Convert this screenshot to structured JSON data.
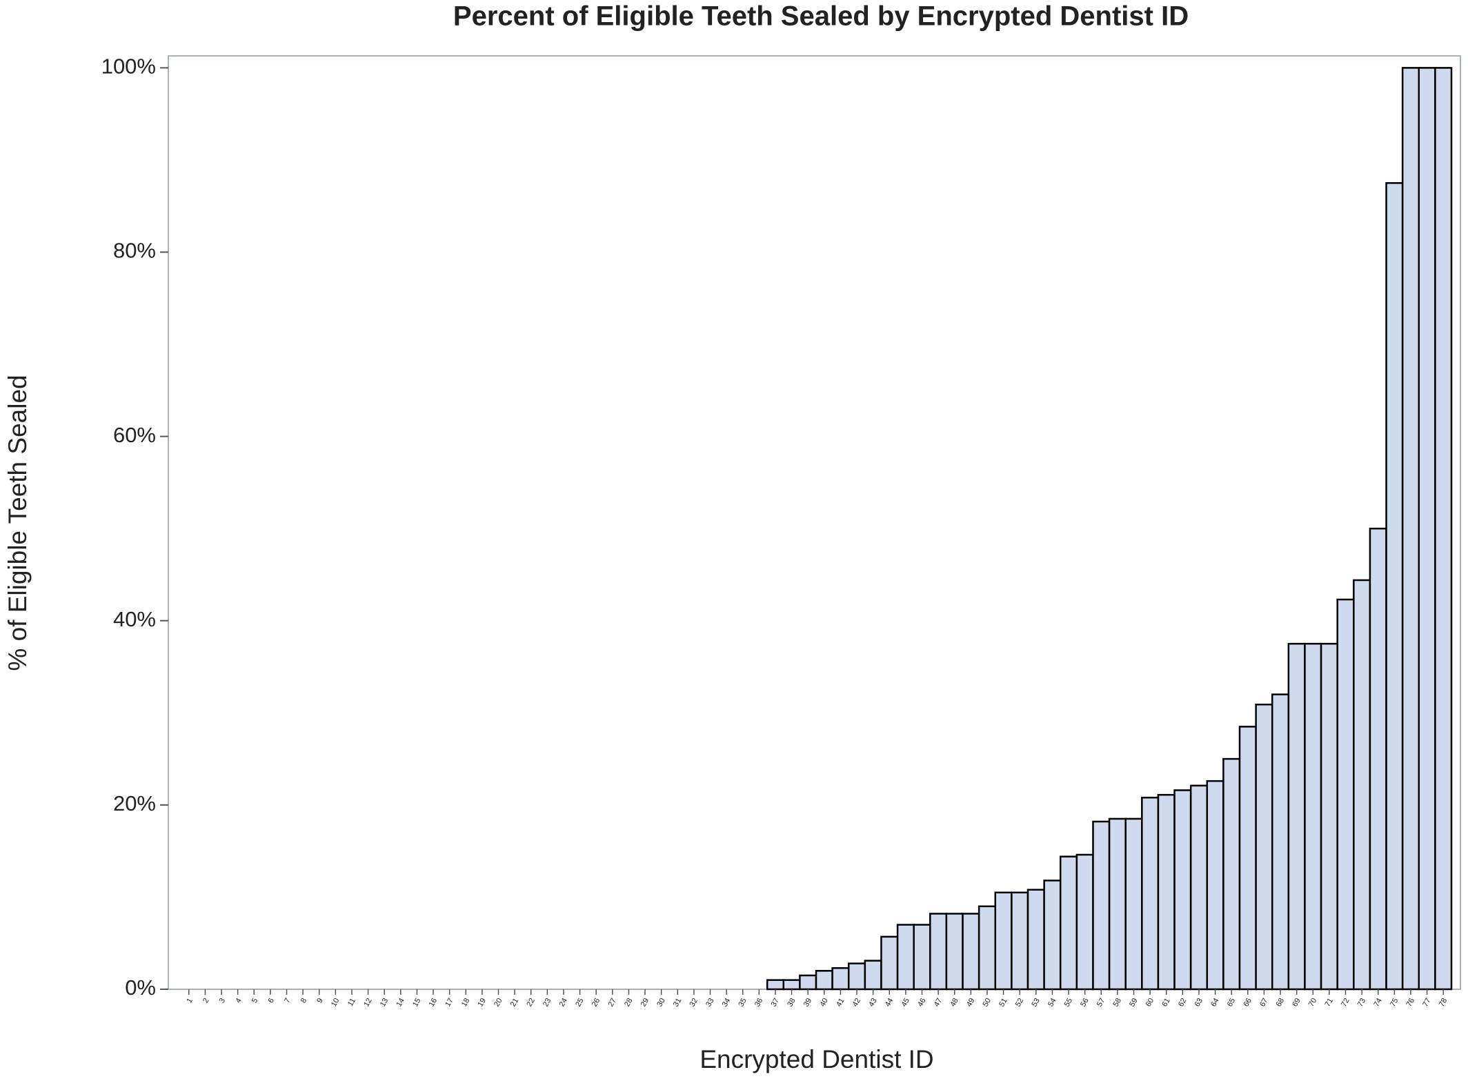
{
  "chart_data": {
    "type": "bar",
    "title": "Percent of Eligible Teeth Sealed by Encrypted Dentist ID",
    "x_label": "Encrypted Dentist ID",
    "y_label": "% of Eligible Teeth Sealed",
    "categories": [
      "1",
      "2",
      "3",
      "4",
      "5",
      "6",
      "7",
      "8",
      "9",
      "10",
      "11",
      "12",
      "13",
      "14",
      "15",
      "16",
      "17",
      "18",
      "19",
      "20",
      "21",
      "22",
      "23",
      "24",
      "25",
      "26",
      "27",
      "28",
      "29",
      "30",
      "31",
      "32",
      "33",
      "34",
      "35",
      "36",
      "37",
      "38",
      "39",
      "40",
      "41",
      "42",
      "43",
      "44",
      "45",
      "46",
      "47",
      "48",
      "49",
      "50",
      "51",
      "52",
      "53",
      "54",
      "55",
      "56",
      "57",
      "58",
      "59",
      "60",
      "61",
      "62",
      "63",
      "64",
      "65",
      "66",
      "67",
      "68",
      "69",
      "70",
      "71",
      "72",
      "73",
      "74",
      "75",
      "76",
      "77",
      "78"
    ],
    "values": [
      0,
      0,
      0,
      0,
      0,
      0,
      0,
      0,
      0,
      0,
      0,
      0,
      0,
      0,
      0,
      0,
      0,
      0,
      0,
      0,
      0,
      0,
      0,
      0,
      0,
      0,
      0,
      0,
      0,
      0,
      0,
      0,
      0,
      0,
      0,
      0,
      1,
      1,
      1.5,
      2,
      2.3,
      2.8,
      3.1,
      5.7,
      7,
      7,
      8.2,
      8.2,
      8.2,
      9,
      10.5,
      10.5,
      10.8,
      11.8,
      14.4,
      14.6,
      18.2,
      18.5,
      18.5,
      20.8,
      21.1,
      21.6,
      22.1,
      22.6,
      25,
      28.5,
      30.9,
      32,
      37.5,
      37.5,
      37.5,
      42.3,
      44.4,
      50,
      87.5,
      100,
      100,
      100
    ],
    "color": "#cfdbec",
    "ylim": [
      0,
      101.3
    ],
    "yticks": [
      {
        "value": 0,
        "label": "0%"
      },
      {
        "value": 20,
        "label": "20%"
      },
      {
        "value": 40,
        "label": "40%"
      },
      {
        "value": 60,
        "label": "60%"
      },
      {
        "value": 80,
        "label": "80%"
      },
      {
        "value": 100,
        "label": "100%"
      }
    ],
    "grid": false
  }
}
